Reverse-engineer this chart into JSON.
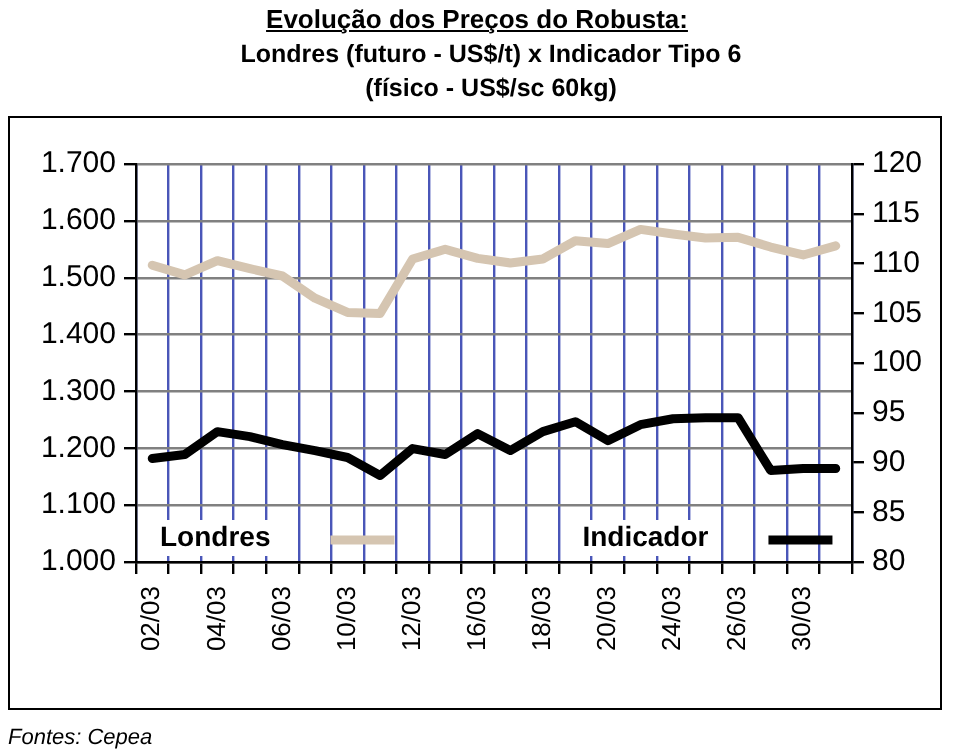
{
  "chart_data": {
    "type": "line",
    "title": "Evolução dos Preços do Robusta:",
    "subtitle": "Londres (futuro - US$/t) x Indicador Tipo 6 (físico - US$/sc 60kg)",
    "annotations": [
      "Fontes: Cepea"
    ],
    "categories": [
      "02/03",
      null,
      "04/03",
      null,
      "06/03",
      null,
      "10/03",
      null,
      "12/03",
      null,
      "16/03",
      null,
      "18/03",
      null,
      "20/03",
      null,
      "24/03",
      null,
      "26/03",
      null,
      "30/03",
      null
    ],
    "series": [
      {
        "name": "Londres",
        "color": "#d5c5b1",
        "values": [
          1522,
          1505,
          1530,
          1516,
          1503,
          1464,
          1439,
          1437,
          1533,
          1550,
          1534,
          1526,
          1533,
          1565,
          1560,
          1585,
          1577,
          1570,
          1571,
          1554,
          1540,
          1556
        ]
      },
      {
        "name": "Indicador",
        "color": "#000000",
        "axis": "y2",
        "values": [
          90.4,
          90.8,
          93.1,
          92.6,
          91.8,
          91.2,
          90.5,
          88.7,
          91.4,
          90.8,
          92.9,
          91.2,
          93.1,
          94.1,
          92.2,
          93.8,
          94.4,
          94.5,
          94.5,
          89.2,
          89.4,
          89.4
        ]
      }
    ],
    "ylim": [
      1000,
      1700
    ],
    "yticks": [
      {
        "value": 1000,
        "label": "1.000"
      },
      {
        "value": 1100,
        "label": "1.100"
      },
      {
        "value": 1200,
        "label": "1.200"
      },
      {
        "value": 1300,
        "label": "1.300"
      },
      {
        "value": 1400,
        "label": "1.400"
      },
      {
        "value": 1500,
        "label": "1.500"
      },
      {
        "value": 1600,
        "label": "1.600"
      },
      {
        "value": 1700,
        "label": "1.700"
      }
    ],
    "y2lim": [
      80,
      120
    ],
    "y2ticks": [
      80,
      85,
      90,
      95,
      100,
      105,
      110,
      115,
      120
    ],
    "grid": true,
    "legend": "bottom",
    "marker": "none",
    "line_style": "solid"
  }
}
